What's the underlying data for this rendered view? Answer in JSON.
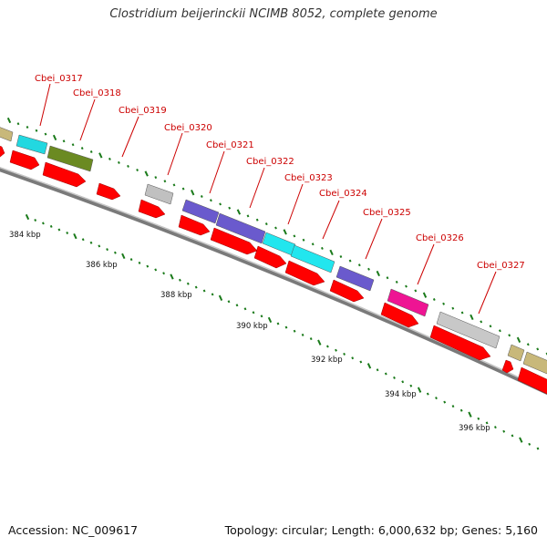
{
  "title": "Clostridium beijerinckii NCIMB 8052, complete genome",
  "footer": {
    "accession": "Accession: NC_009617",
    "summary": "Topology: circular; Length: 6,000,632 bp; Genes: 5,160"
  },
  "colors": {
    "backbone": "#8c8c8c",
    "tick": "#1a7a1a",
    "label": "#cc0000",
    "cds": "#ff0000"
  },
  "axis": {
    "tick_labels": [
      "384 kbp",
      "386 kbp",
      "388 kbp",
      "390 kbp",
      "392 kbp",
      "394 kbp",
      "396 kbp"
    ]
  },
  "gene_labels": [
    "Cbei_0317",
    "Cbei_0318",
    "Cbei_0319",
    "Cbei_0320",
    "Cbei_0321",
    "Cbei_0322",
    "Cbei_0323",
    "Cbei_0324",
    "Cbei_0325",
    "Cbei_0326",
    "Cbei_0327"
  ],
  "genes": [
    {
      "color": "#c8b87a"
    },
    {
      "color": "#22d8e0"
    },
    {
      "color": "#6b8a22"
    },
    {
      "color": "#c0c0c0"
    },
    {
      "color": "#6a5acd"
    },
    {
      "color": "#6a5acd"
    },
    {
      "color": "#22e6ee"
    },
    {
      "color": "#22e6ee"
    },
    {
      "color": "#6a5acd"
    },
    {
      "color": "#ee1493"
    },
    {
      "color": "#c8c8c8"
    },
    {
      "color": "#c8b87a"
    },
    {
      "color": "#c8b87a"
    }
  ]
}
